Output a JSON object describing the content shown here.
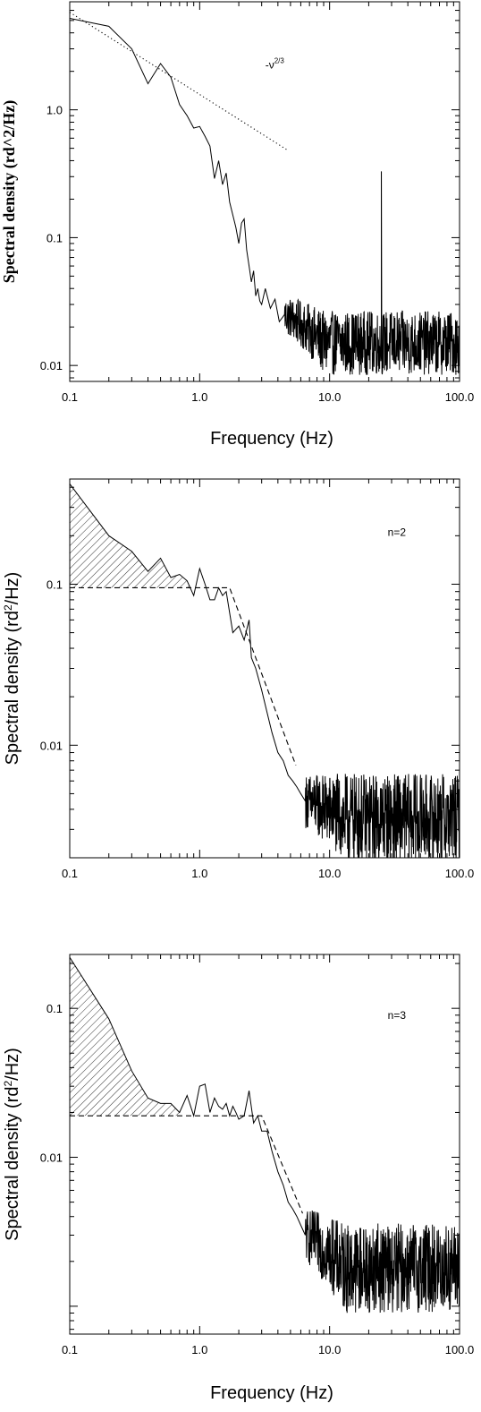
{
  "chart_data": [
    {
      "type": "line",
      "xscale": "log",
      "yscale": "log",
      "xlim": [
        0.1,
        100
      ],
      "ylim": [
        0.0075,
        7
      ],
      "xticks": [
        {
          "value": 0.1,
          "label": "0.1"
        },
        {
          "value": 1,
          "label": "1.0"
        },
        {
          "value": 10,
          "label": "10.0"
        },
        {
          "value": 100,
          "label": "100.0"
        }
      ],
      "yticks": [
        {
          "value": 0.01,
          "label": "0.01"
        },
        {
          "value": 0.1,
          "label": "0.1"
        },
        {
          "value": 1,
          "label": "1.0"
        }
      ],
      "xlabel": "Frequency (Hz)",
      "ylabel": "Spectral density (rd^2/Hz)",
      "annotation": {
        "text": "-ν",
        "sup": "2/3",
        "x": 3.2,
        "y": 2.1
      },
      "series": [
        {
          "style": "solid",
          "noise_from": 5,
          "noise_level": 0.015,
          "noise_spread": 0.25,
          "spike": {
            "x": 25,
            "y": 0.33
          },
          "x": [
            0.1,
            0.2,
            0.3,
            0.4,
            0.5,
            0.6,
            0.7,
            0.8,
            0.9,
            1.0,
            1.1,
            1.2,
            1.3,
            1.4,
            1.5,
            1.6,
            1.7,
            1.8,
            1.9,
            2.0,
            2.1,
            2.2,
            2.3,
            2.4,
            2.5,
            2.6,
            2.7,
            2.8,
            2.9,
            3.0,
            3.2,
            3.5,
            3.8,
            4.1,
            4.5
          ],
          "y": [
            5.2,
            4.5,
            3.0,
            1.6,
            2.3,
            1.8,
            1.1,
            0.9,
            0.72,
            0.74,
            0.62,
            0.52,
            0.29,
            0.4,
            0.26,
            0.32,
            0.19,
            0.15,
            0.12,
            0.09,
            0.13,
            0.14,
            0.08,
            0.06,
            0.045,
            0.055,
            0.035,
            0.04,
            0.032,
            0.03,
            0.04,
            0.028,
            0.033,
            0.022,
            0.025
          ]
        },
        {
          "style": "dotted",
          "x": [
            0.1,
            4.8
          ],
          "y": [
            5.8,
            0.48
          ]
        }
      ]
    },
    {
      "type": "line",
      "xscale": "log",
      "yscale": "log",
      "xlim": [
        0.1,
        100
      ],
      "ylim": [
        0.002,
        0.45
      ],
      "xticks": [
        {
          "value": 0.1,
          "label": "0.1"
        },
        {
          "value": 1,
          "label": "1.0"
        },
        {
          "value": 10,
          "label": "10.0"
        },
        {
          "value": 100,
          "label": "100.0"
        }
      ],
      "yticks": [
        {
          "value": 0.01,
          "label": "0.01"
        },
        {
          "value": 0.1,
          "label": "0.1"
        }
      ],
      "xlabel": "",
      "ylabel": "Spectral density (rd",
      "ylabel_sup": "2",
      "ylabel_tail": "/Hz)",
      "annotation": {
        "text": "n=2",
        "sup": "",
        "x": 28,
        "y": 0.2
      },
      "shade": {
        "x": [
          0.1,
          0.2,
          0.3,
          0.4,
          0.5,
          0.6,
          0.7,
          0.8
        ],
        "y": [
          0.42,
          0.2,
          0.16,
          0.12,
          0.145,
          0.11,
          0.115,
          0.105
        ],
        "base": 0.095,
        "x_end": 0.85
      },
      "series": [
        {
          "style": "solid",
          "noise_from": 7,
          "noise_level": 0.0035,
          "noise_spread": 0.28,
          "x": [
            0.1,
            0.2,
            0.3,
            0.4,
            0.5,
            0.6,
            0.7,
            0.8,
            0.9,
            1.0,
            1.1,
            1.2,
            1.3,
            1.4,
            1.5,
            1.6,
            1.8,
            2.0,
            2.2,
            2.4,
            2.5,
            2.7,
            3.0,
            3.3,
            3.6,
            4.0,
            4.4,
            4.8,
            5.2,
            5.6,
            6.0,
            6.5
          ],
          "y": [
            0.42,
            0.2,
            0.16,
            0.12,
            0.145,
            0.11,
            0.115,
            0.105,
            0.085,
            0.125,
            0.1,
            0.08,
            0.08,
            0.095,
            0.085,
            0.09,
            0.05,
            0.055,
            0.045,
            0.06,
            0.035,
            0.03,
            0.022,
            0.016,
            0.012,
            0.009,
            0.008,
            0.0065,
            0.006,
            0.0055,
            0.005,
            0.0045
          ]
        },
        {
          "style": "dashed",
          "x": [
            0.1,
            1.7,
            5.5
          ],
          "y": [
            0.095,
            0.095,
            0.0075
          ]
        }
      ]
    },
    {
      "type": "line",
      "xscale": "log",
      "yscale": "log",
      "xlim": [
        0.1,
        100
      ],
      "ylim": [
        0.00065,
        0.23
      ],
      "xticks": [
        {
          "value": 0.1,
          "label": "0.1"
        },
        {
          "value": 1,
          "label": "1.0"
        },
        {
          "value": 10,
          "label": "10.0"
        },
        {
          "value": 100,
          "label": "100.0"
        }
      ],
      "yticks": [
        {
          "value": 0.01,
          "label": "0.01"
        },
        {
          "value": 0.1,
          "label": "0.1"
        }
      ],
      "xlabel": "Frequency (Hz)",
      "ylabel": "Spectral density (rd",
      "ylabel_sup": "2",
      "ylabel_tail": "/Hz)",
      "annotation": {
        "text": "n=3",
        "sup": "",
        "x": 28,
        "y": 0.085
      },
      "shade": {
        "x": [
          0.1,
          0.2,
          0.3,
          0.4,
          0.5,
          0.6,
          0.7
        ],
        "y": [
          0.22,
          0.085,
          0.038,
          0.025,
          0.023,
          0.023,
          0.02
        ],
        "base": 0.019,
        "x_end": 0.7
      },
      "series": [
        {
          "style": "solid",
          "noise_from": 7,
          "noise_level": 0.0018,
          "noise_spread": 0.3,
          "x": [
            0.1,
            0.2,
            0.3,
            0.4,
            0.5,
            0.6,
            0.7,
            0.8,
            0.9,
            1.0,
            1.1,
            1.2,
            1.3,
            1.4,
            1.5,
            1.6,
            1.7,
            1.8,
            1.9,
            2.0,
            2.2,
            2.4,
            2.6,
            2.8,
            3.0,
            3.3,
            3.6,
            4.0,
            4.4,
            4.8,
            5.2,
            5.6,
            6.0,
            6.5
          ],
          "y": [
            0.22,
            0.085,
            0.038,
            0.025,
            0.023,
            0.023,
            0.02,
            0.026,
            0.019,
            0.03,
            0.031,
            0.02,
            0.025,
            0.022,
            0.021,
            0.023,
            0.019,
            0.022,
            0.02,
            0.018,
            0.019,
            0.028,
            0.017,
            0.019,
            0.015,
            0.015,
            0.011,
            0.008,
            0.0065,
            0.005,
            0.0045,
            0.004,
            0.0035,
            0.003
          ]
        },
        {
          "style": "dashed",
          "x": [
            0.1,
            3.0,
            6.2
          ],
          "y": [
            0.019,
            0.019,
            0.0042
          ]
        }
      ]
    }
  ]
}
